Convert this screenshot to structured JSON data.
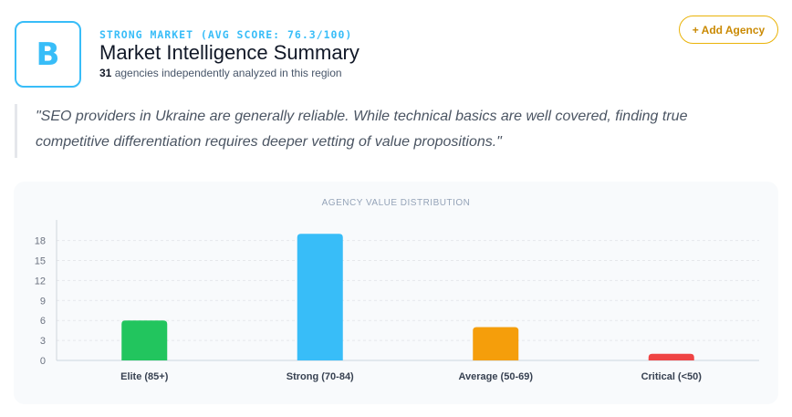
{
  "summary": {
    "grade": "B",
    "eyebrow": "STRONG MARKET (AVG SCORE: 76.3/100)",
    "title": "Market Intelligence Summary",
    "agency_count": "31",
    "agency_count_suffix": "agencies independently analyzed in this region"
  },
  "actions": {
    "add_agency_label": "+ Add Agency"
  },
  "quote": {
    "text": "\"SEO providers in Ukraine are generally reliable. While technical basics are well covered, finding true competitive differentiation requires deeper vetting of value propositions.\""
  },
  "chart_data": {
    "type": "bar",
    "title": "AGENCY VALUE DISTRIBUTION",
    "categories": [
      "Elite (85+)",
      "Strong (70-84)",
      "Average (50-69)",
      "Critical (<50)"
    ],
    "values": [
      6,
      19,
      5,
      1
    ],
    "colors": [
      "#22c55e",
      "#38bdf8",
      "#f59e0b",
      "#ef4444"
    ],
    "yticks": [
      0,
      3,
      6,
      9,
      12,
      15,
      18
    ],
    "ylim": [
      0,
      20
    ],
    "xlabel": "",
    "ylabel": "",
    "grid": true
  }
}
